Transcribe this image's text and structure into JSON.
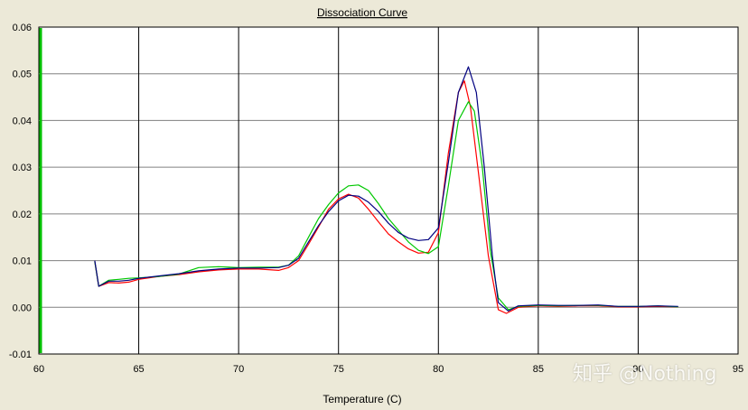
{
  "chart_data": {
    "type": "line",
    "title": "Dissociation Curve",
    "xlabel": "Temperature (C)",
    "ylabel": "",
    "xlim": [
      60,
      95
    ],
    "ylim": [
      -0.01,
      0.06
    ],
    "grid": true,
    "xticks": [
      "60",
      "65",
      "70",
      "75",
      "80",
      "85",
      "90",
      "95"
    ],
    "yticks": [
      "-0.01",
      "0.00",
      "0.01",
      "0.02",
      "0.03",
      "0.04",
      "0.05",
      "0.06"
    ],
    "series": [
      {
        "color": "#ff0000",
        "x": [
          62.8,
          63.0,
          63.5,
          64.0,
          64.5,
          65.0,
          66.0,
          67.0,
          68.0,
          69.0,
          70.0,
          71.0,
          72.0,
          72.5,
          73.0,
          73.5,
          74.0,
          74.5,
          75.0,
          75.5,
          76.0,
          76.5,
          77.0,
          77.5,
          78.0,
          78.5,
          79.0,
          79.5,
          80.0,
          80.5,
          81.0,
          81.3,
          81.6,
          82.0,
          82.5,
          83.0,
          83.4,
          84.0,
          85.0,
          86.0,
          87.0,
          88.0,
          89.0,
          90.0,
          91.0,
          92.0
        ],
        "values": [
          0.0098,
          0.0045,
          0.0053,
          0.0052,
          0.0054,
          0.006,
          0.0066,
          0.007,
          0.0076,
          0.008,
          0.0082,
          0.0082,
          0.0079,
          0.0085,
          0.01,
          0.0135,
          0.0172,
          0.021,
          0.0232,
          0.0242,
          0.0234,
          0.021,
          0.0183,
          0.0157,
          0.014,
          0.0125,
          0.0116,
          0.0118,
          0.016,
          0.033,
          0.046,
          0.0485,
          0.043,
          0.029,
          0.011,
          -0.0005,
          -0.0013,
          0.0,
          0.0003,
          0.0002,
          0.0003,
          0.0003,
          0.0001,
          0.0001,
          0.0002,
          0.0001
        ]
      },
      {
        "color": "#00c800",
        "x": [
          62.8,
          63.0,
          63.5,
          64.0,
          64.5,
          65.0,
          66.0,
          67.0,
          68.0,
          69.0,
          70.0,
          71.0,
          72.0,
          72.5,
          73.0,
          73.5,
          74.0,
          74.5,
          75.0,
          75.5,
          76.0,
          76.5,
          77.0,
          77.5,
          78.0,
          78.5,
          79.0,
          79.5,
          80.0,
          80.5,
          81.0,
          81.5,
          81.8,
          82.2,
          82.6,
          83.0,
          83.5,
          84.0,
          85.0,
          86.0,
          87.0,
          88.0,
          89.0,
          90.0,
          91.0,
          92.0
        ],
        "values": [
          0.0098,
          0.0045,
          0.0058,
          0.006,
          0.0062,
          0.0063,
          0.0066,
          0.0071,
          0.0085,
          0.0087,
          0.0085,
          0.0086,
          0.0086,
          0.009,
          0.011,
          0.015,
          0.019,
          0.022,
          0.0245,
          0.026,
          0.0262,
          0.025,
          0.0222,
          0.019,
          0.0165,
          0.014,
          0.0122,
          0.0115,
          0.013,
          0.026,
          0.04,
          0.044,
          0.042,
          0.03,
          0.012,
          0.002,
          -0.0005,
          0.0002,
          0.0004,
          0.0003,
          0.0004,
          0.0004,
          0.0002,
          0.0002,
          0.0003,
          0.0001
        ]
      },
      {
        "color": "#000080",
        "x": [
          62.8,
          63.0,
          63.5,
          64.0,
          64.5,
          65.0,
          66.0,
          67.0,
          68.0,
          69.0,
          70.0,
          71.0,
          72.0,
          72.5,
          73.0,
          73.5,
          74.0,
          74.5,
          75.0,
          75.5,
          76.0,
          76.5,
          77.0,
          77.5,
          78.0,
          78.5,
          79.0,
          79.5,
          80.0,
          80.5,
          81.0,
          81.5,
          81.9,
          82.3,
          82.7,
          83.0,
          83.5,
          84.0,
          85.0,
          86.0,
          87.0,
          88.0,
          89.0,
          90.0,
          91.0,
          92.0
        ],
        "values": [
          0.01,
          0.0045,
          0.0056,
          0.0056,
          0.0058,
          0.0062,
          0.0067,
          0.0072,
          0.0078,
          0.0082,
          0.0084,
          0.0084,
          0.0085,
          0.009,
          0.0105,
          0.014,
          0.0175,
          0.0205,
          0.0228,
          0.024,
          0.0238,
          0.0225,
          0.0205,
          0.018,
          0.016,
          0.0148,
          0.0143,
          0.0145,
          0.017,
          0.031,
          0.046,
          0.0515,
          0.046,
          0.03,
          0.011,
          0.001,
          -0.0008,
          0.0003,
          0.0005,
          0.0004,
          0.0004,
          0.0005,
          0.0002,
          0.0002,
          0.0003,
          0.0002
        ]
      }
    ]
  },
  "watermark": "知乎 @Nothing",
  "colors": {
    "background": "#ece9d8",
    "plot_area": "#ffffff",
    "grid_vertical": "#000000",
    "grid_horizontal": "#808080",
    "left_axis_bar": "#00c000"
  }
}
